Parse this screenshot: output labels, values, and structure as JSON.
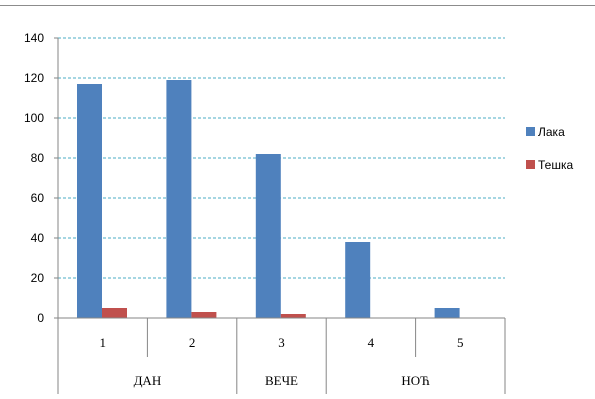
{
  "chart_data": {
    "type": "bar",
    "categories": [
      "1",
      "2",
      "3",
      "4",
      "5"
    ],
    "groups": [
      {
        "label": "ДАН",
        "categories": [
          "1",
          "2"
        ]
      },
      {
        "label": "ВЕЧЕ",
        "categories": [
          "3"
        ]
      },
      {
        "label": "НОЋ",
        "categories": [
          "4",
          "5"
        ]
      }
    ],
    "series": [
      {
        "name": "Лака",
        "color": "#4F81BD",
        "values": [
          117,
          119,
          82,
          38,
          5
        ]
      },
      {
        "name": "Тешка",
        "color": "#C0504D",
        "values": [
          5,
          3,
          2,
          0,
          0
        ]
      }
    ],
    "ylim": [
      0,
      140
    ],
    "yticks": [
      0,
      20,
      40,
      60,
      80,
      100,
      120,
      140
    ],
    "grid": true,
    "legend": "right"
  }
}
